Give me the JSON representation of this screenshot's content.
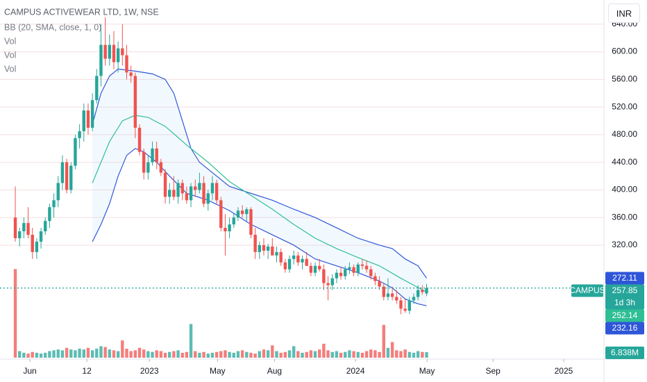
{
  "chart_data": {
    "type": "candlestick",
    "title": "CAMPUS ACTIVEWEAR LTD, 1W, NSE",
    "indicators": [
      "BB (20, SMA, close, 1, 0)",
      "Vol",
      "Vol",
      "Vol"
    ],
    "currency": "INR",
    "symbol": "CAMPUS",
    "countdown": "1d 3h",
    "up_color": "#26a69a",
    "down_color": "#ef5350",
    "grid": true,
    "xlim": [
      -3.57,
      137.4
    ],
    "xticks": [
      {
        "value": 3.4,
        "label": "Jun"
      },
      {
        "value": 16.7,
        "label": "12"
      },
      {
        "value": 31.3,
        "label": "2023"
      },
      {
        "value": 47.2,
        "label": "May"
      },
      {
        "value": 60.5,
        "label": "Aug"
      },
      {
        "value": 79.4,
        "label": "2024"
      },
      {
        "value": 96.1,
        "label": "May"
      },
      {
        "value": 111.5,
        "label": "Sep"
      },
      {
        "value": 128,
        "label": "2025"
      }
    ],
    "ylim": [
      157,
      675
    ],
    "yticks": [
      {
        "value": 320,
        "label": "320.00"
      },
      {
        "value": 360,
        "label": "360.00"
      },
      {
        "value": 400,
        "label": "400.00"
      },
      {
        "value": 440,
        "label": "440.00"
      },
      {
        "value": 480,
        "label": "480.00"
      },
      {
        "value": 520,
        "label": "520.00"
      },
      {
        "value": 560,
        "label": "560.00"
      },
      {
        "value": 600,
        "label": "600.00"
      },
      {
        "value": 640,
        "label": "640.00"
      }
    ],
    "open": [
      360,
      330,
      340,
      352,
      335,
      310,
      325,
      340,
      355,
      375,
      385,
      410,
      440,
      400,
      435,
      475,
      485,
      515,
      490,
      530,
      565,
      610,
      590,
      610,
      585,
      605,
      595,
      570,
      565,
      490,
      455,
      425,
      440,
      460,
      440,
      425,
      390,
      400,
      390,
      410,
      395,
      385,
      405,
      400,
      410,
      380,
      395,
      410,
      385,
      345,
      340,
      350,
      360,
      370,
      365,
      372,
      335,
      310,
      320,
      312,
      318,
      305,
      310,
      295,
      285,
      300,
      305,
      295,
      300,
      290,
      280,
      290,
      285,
      265,
      262,
      272,
      280,
      275,
      285,
      288,
      280,
      292,
      290,
      285,
      275,
      268,
      260,
      245,
      250,
      245,
      240,
      228,
      225,
      240,
      245,
      255,
      250
    ],
    "high": [
      405,
      345,
      360,
      375,
      345,
      330,
      345,
      360,
      380,
      395,
      420,
      450,
      445,
      440,
      480,
      495,
      525,
      525,
      540,
      575,
      640,
      650,
      625,
      630,
      615,
      640,
      610,
      580,
      570,
      495,
      460,
      450,
      470,
      470,
      445,
      430,
      410,
      420,
      415,
      415,
      405,
      410,
      415,
      425,
      420,
      400,
      420,
      415,
      390,
      365,
      360,
      365,
      375,
      378,
      375,
      375,
      345,
      325,
      330,
      322,
      330,
      318,
      315,
      300,
      305,
      312,
      310,
      305,
      310,
      295,
      295,
      300,
      292,
      275,
      278,
      285,
      288,
      290,
      295,
      292,
      295,
      300,
      298,
      290,
      280,
      275,
      265,
      272,
      260,
      255,
      245,
      242,
      245,
      250,
      262,
      262,
      264
    ],
    "low": [
      325,
      318,
      330,
      330,
      300,
      300,
      315,
      335,
      345,
      360,
      375,
      400,
      395,
      395,
      430,
      460,
      470,
      480,
      485,
      525,
      550,
      580,
      580,
      575,
      570,
      580,
      560,
      555,
      475,
      450,
      415,
      415,
      435,
      430,
      420,
      380,
      380,
      385,
      380,
      385,
      380,
      375,
      390,
      395,
      375,
      370,
      385,
      380,
      340,
      305,
      330,
      345,
      355,
      360,
      355,
      330,
      300,
      300,
      305,
      300,
      310,
      295,
      290,
      280,
      280,
      292,
      290,
      285,
      290,
      275,
      275,
      282,
      255,
      240,
      255,
      265,
      270,
      270,
      278,
      275,
      275,
      285,
      280,
      270,
      262,
      255,
      240,
      240,
      240,
      235,
      220,
      222,
      220,
      235,
      240,
      248,
      246
    ],
    "close": [
      330,
      340,
      352,
      335,
      310,
      325,
      340,
      355,
      375,
      385,
      410,
      440,
      400,
      435,
      475,
      485,
      515,
      490,
      530,
      565,
      610,
      590,
      610,
      585,
      605,
      595,
      570,
      565,
      490,
      455,
      425,
      440,
      460,
      440,
      425,
      390,
      400,
      390,
      410,
      395,
      385,
      405,
      400,
      410,
      380,
      395,
      410,
      385,
      345,
      340,
      350,
      360,
      370,
      365,
      372,
      335,
      310,
      320,
      312,
      318,
      305,
      310,
      295,
      285,
      300,
      305,
      295,
      300,
      290,
      280,
      290,
      285,
      265,
      262,
      272,
      280,
      275,
      285,
      288,
      280,
      292,
      290,
      285,
      275,
      268,
      260,
      245,
      250,
      245,
      240,
      228,
      225,
      240,
      245,
      255,
      252,
      257.85
    ],
    "volume": {
      "vlim": [
        0,
        110
      ],
      "values": [
        108,
        8,
        6,
        5,
        7,
        6,
        5,
        6,
        8,
        9,
        10,
        9,
        12,
        10,
        9,
        11,
        10,
        12,
        9,
        11,
        14,
        13,
        10,
        9,
        8,
        21,
        11,
        8,
        9,
        12,
        10,
        8,
        7,
        9,
        8,
        6,
        7,
        8,
        9,
        6,
        7,
        41,
        8,
        6,
        7,
        5,
        6,
        7,
        8,
        9,
        7,
        6,
        8,
        9,
        7,
        6,
        5,
        8,
        10,
        9,
        15,
        8,
        6,
        7,
        9,
        14,
        8,
        6,
        7,
        9,
        8,
        10,
        17,
        9,
        7,
        8,
        6,
        7,
        9,
        8,
        7,
        6,
        8,
        10,
        9,
        7,
        40,
        12,
        19,
        9,
        8,
        10,
        7,
        6,
        8,
        7,
        6.838
      ],
      "value_labels": [
        null,
        null,
        null,
        null,
        null,
        null,
        null,
        null,
        null,
        null,
        null,
        null,
        null,
        null,
        null,
        null,
        null,
        null,
        null,
        null,
        null,
        null,
        null,
        null,
        null,
        null,
        null,
        null,
        null,
        null,
        null,
        null,
        null,
        null,
        null,
        null,
        null,
        null,
        null,
        null,
        null,
        null,
        null,
        null,
        null,
        null,
        null,
        null,
        null,
        null,
        null,
        null,
        null,
        null,
        null,
        null,
        null,
        null,
        null,
        null,
        null,
        null,
        null,
        null,
        null,
        null,
        null,
        null,
        null,
        null,
        null,
        null,
        null,
        null,
        null,
        null,
        null,
        null,
        null,
        null,
        null,
        null,
        null,
        null,
        null,
        null,
        null,
        null,
        null,
        null,
        null,
        null,
        null,
        null,
        null,
        null,
        "6.838M"
      ]
    },
    "bands": [
      {
        "name": "upper",
        "color": "#2f56d8",
        "x": [
          18,
          20,
          22,
          24,
          28,
          32,
          35,
          37,
          39,
          41,
          43,
          46,
          50,
          55,
          60,
          65,
          70,
          75,
          80,
          85,
          88,
          91,
          94,
          96
        ],
        "values": [
          495,
          540,
          565,
          575,
          572,
          568,
          560,
          540,
          500,
          460,
          440,
          425,
          405,
          395,
          385,
          372,
          360,
          345,
          330,
          320,
          315,
          300,
          290,
          272.11
        ]
      },
      {
        "name": "middle",
        "color": "#2fbf94",
        "x": [
          18,
          20,
          22,
          25,
          28,
          31,
          35,
          40,
          45,
          50,
          55,
          60,
          65,
          70,
          75,
          80,
          85,
          90,
          93,
          96
        ],
        "values": [
          410,
          440,
          470,
          500,
          508,
          505,
          492,
          465,
          440,
          412,
          392,
          372,
          350,
          330,
          315,
          302,
          290,
          272,
          262,
          252.14
        ]
      },
      {
        "name": "lower",
        "color": "#2f56d8",
        "x": [
          18,
          20,
          22,
          24,
          26,
          28,
          30,
          33,
          36,
          40,
          45,
          50,
          55,
          60,
          65,
          70,
          75,
          80,
          85,
          88,
          91,
          94,
          96
        ],
        "values": [
          325,
          350,
          380,
          420,
          450,
          460,
          455,
          440,
          420,
          395,
          385,
          370,
          350,
          335,
          320,
          300,
          290,
          280,
          268,
          258,
          242,
          235,
          232.16
        ]
      }
    ]
  }
}
